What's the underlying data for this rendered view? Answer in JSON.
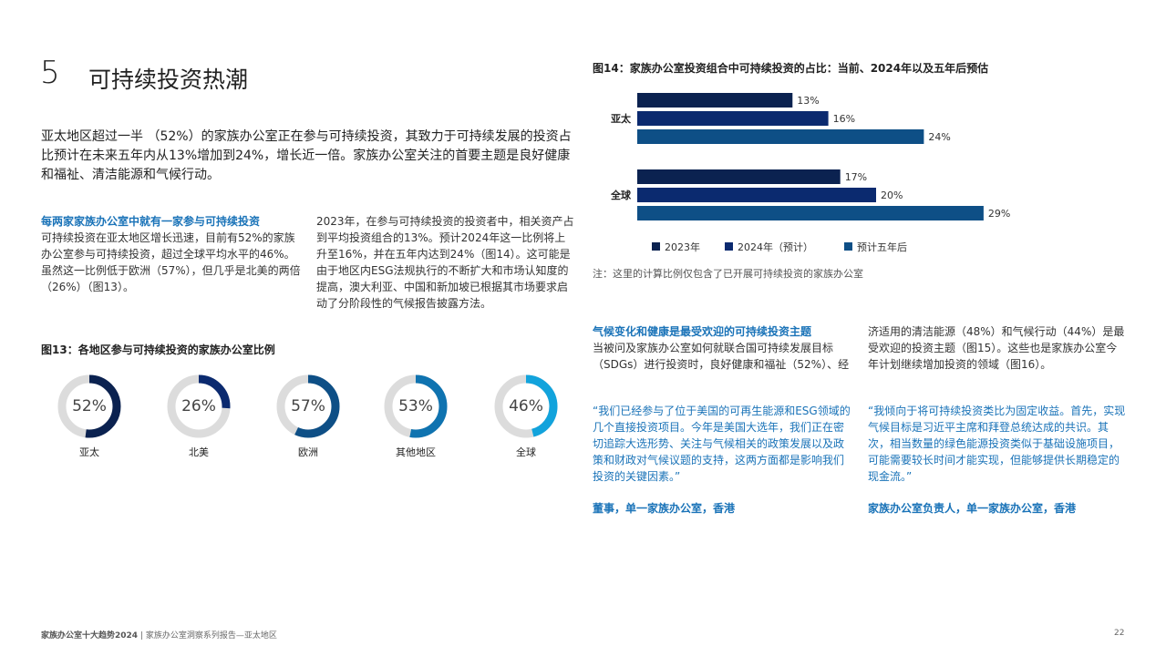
{
  "section": {
    "number": "5",
    "title": "可持续投资热潮"
  },
  "intro": "亚太地区超过一半 （52%）的家族办公室正在参与可持续投资，其致力于可持续发展的投资占比预计在未来五年内从13%增加到24%，增长近一倍。家族办公室关注的首要主题是良好健康和福祉、清洁能源和气候行动。",
  "col1": {
    "heading": "每两家家族办公室中就有一家参与可持续投资",
    "text": "可持续投资在亚太地区增长迅速，目前有52%的家族办公室参与可持续投资，超过全球平均水平的46%。虽然这一比例低于欧洲（57%），但几乎是北美的两倍（26%）（图13）。"
  },
  "col2": {
    "text": "2023年，在参与可持续投资的投资者中，相关资产占到平均投资组合的13%。预计2024年这一比例将上升至16%，并在五年内达到24%（图14）。这可能是由于地区内ESG法规执行的不断扩大和市场认知度的提高，澳大利亚、中国和新加坡已根据其市场要求启动了分阶段性的气候报告披露方法。"
  },
  "fig13": {
    "title": "图13：各地区参与可持续投资的家族办公室比例",
    "donuts": [
      {
        "label": "亚太",
        "value": 52,
        "display": "52%",
        "color": "#0b2250"
      },
      {
        "label": "北美",
        "value": 26,
        "display": "26%",
        "color": "#0b2a6f"
      },
      {
        "label": "欧洲",
        "value": 57,
        "display": "57%",
        "color": "#0e4f86"
      },
      {
        "label": "其他地区",
        "value": 53,
        "display": "53%",
        "color": "#0f73b0"
      },
      {
        "label": "全球",
        "value": 46,
        "display": "46%",
        "color": "#12a3dc"
      }
    ]
  },
  "fig14": {
    "title": "图14：家族办公室投资组合中可持续投资的占比：当前、2024年以及五年后预估"
  },
  "chart_data": {
    "type": "bar",
    "orientation": "horizontal",
    "categories": [
      "亚太",
      "全球"
    ],
    "series": [
      {
        "name": "2023年",
        "values": [
          13,
          17
        ],
        "color": "#0b2250"
      },
      {
        "name": "2024年（预计）",
        "values": [
          16,
          20
        ],
        "color": "#0b2a6f"
      },
      {
        "name": "预计五年后",
        "values": [
          24,
          29
        ],
        "color": "#0e4f86"
      }
    ],
    "value_suffix": "%",
    "legend_position": "bottom"
  },
  "note": "注：这里的计算比例仅包含了已开展可持续投资的家族办公室",
  "col3": {
    "heading": "气候变化和健康是最受欢迎的可持续投资主题",
    "text": "当被问及家族办公室如何就联合国可持续发展目标（SDGs）进行投资时，良好健康和福祉（52%）、经"
  },
  "col4": {
    "text": "济适用的清洁能源（48%）和气候行动（44%）是最受欢迎的投资主题（图15）。这些也是家族办公室今年计划继续增加投资的领域（图16）。"
  },
  "quote1": {
    "text": "“我们已经参与了位于美国的可再生能源和ESG领域的几个直接投资项目。今年是美国大选年，我们正在密切追踪大选形势、关注与气候相关的政策发展以及政策和财政对气候议题的支持，这两方面都是影响我们投资的关键因素。”",
    "attribution": "董事，单一家族办公室，香港"
  },
  "quote2": {
    "text": "“我倾向于将可持续投资类比为固定收益。首先，实现气候目标是习近平主席和拜登总统达成的共识。其次，相当数量的绿色能源投资类似于基础设施项目，可能需要较长时间才能实现，但能够提供长期稳定的现金流。”",
    "attribution": "家族办公室负责人，单一家族办公室，香港"
  },
  "footer": {
    "title": "家族办公室十大趋势2024",
    "subtitle": "| 家族办公室洞察系列报告—亚太地区",
    "page": "22"
  }
}
